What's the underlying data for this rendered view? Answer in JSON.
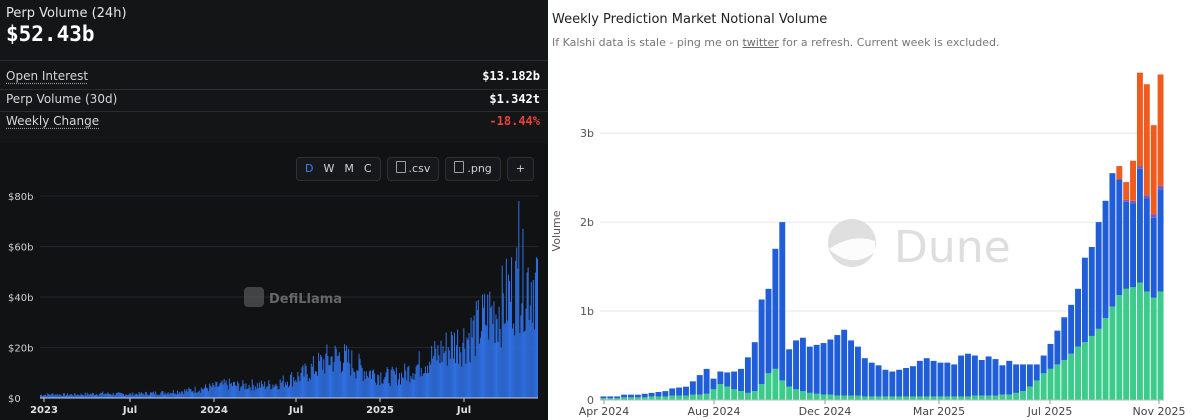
{
  "left_panel": {
    "perp_volume_24h_label": "Perp Volume (24h)",
    "perp_volume_24h_value": "$52.43b",
    "stats": [
      {
        "label": "Open Interest",
        "value": "$13.182b",
        "dotted": true,
        "negative": false
      },
      {
        "label": "Perp Volume (30d)",
        "value": "$1.342t",
        "dotted": false,
        "negative": false
      },
      {
        "label": "Weekly Change",
        "value": "-18.44%",
        "dotted": true,
        "negative": true
      }
    ],
    "toolbar": {
      "periods": [
        "D",
        "W",
        "M",
        "C"
      ],
      "active_period": "D",
      "csv_label": ".csv",
      "png_label": ".png",
      "expand_label": "+"
    },
    "watermark": "DefiLlama"
  },
  "right_panel": {
    "title": "Weekly Prediction Market Notional Volume",
    "subtitle_before": "If Kalshi data is stale - ping me on ",
    "subtitle_link": "twitter",
    "subtitle_after": " for a refresh. Current week is excluded.",
    "watermark": "Dune"
  },
  "colors": {
    "left_bg": "#111214",
    "left_bar": "#2f6fe0",
    "negative": "#e8413c",
    "accent_blue": "#3f7ef7",
    "series_green": "#3ccb8a",
    "series_blue": "#1f5ed8",
    "series_orange": "#ef5b1f",
    "series_purple": "#7e57c2"
  },
  "chart_data": [
    {
      "type": "area",
      "title": "",
      "xlabel": "",
      "ylabel": "",
      "x_tick_labels": [
        "2023",
        "Jul",
        "2024",
        "Jul",
        "2025",
        "Jul"
      ],
      "y_tick_labels": [
        "$0",
        "$20b",
        "$40b",
        "$60b",
        "$80b"
      ],
      "ylim": [
        0,
        80
      ],
      "unit": "billions USD",
      "x_start": "2023-01",
      "interval": "monthly approx. daily average",
      "series": [
        {
          "values": [
            1.2,
            1.5,
            1.3,
            1.4,
            1.6,
            1.8,
            1.6,
            1.5,
            1.7,
            1.9,
            2.2,
            2.6,
            3.0,
            3.8,
            4.5,
            5.5,
            4.8,
            5.2,
            5.0,
            5.6,
            7.5,
            9.0,
            12.0,
            15.0,
            16.5,
            14.0,
            11.0,
            9.5,
            8.5,
            9.0,
            12.0,
            15.0,
            17.5,
            21.0,
            23.0,
            27.0,
            33.0,
            36.0,
            44.0,
            47.0
          ]
        }
      ],
      "peak_value": 78
    },
    {
      "type": "bar",
      "title": "Weekly Prediction Market Notional Volume",
      "xlabel": "",
      "ylabel": "Volume",
      "x_tick_labels": [
        "Apr 2024",
        "Aug 2024",
        "Dec 2024",
        "Mar 2025",
        "Jul 2025",
        "Nov 2025"
      ],
      "y_tick_labels": [
        "0",
        "1b",
        "2b",
        "3b"
      ],
      "ylim": [
        0,
        3.8
      ],
      "unit": "billions USD",
      "categories_start": "2024-04-01",
      "interval": "weekly",
      "series": [
        {
          "values": [
            0.02,
            0.02,
            0.02,
            0.03,
            0.03,
            0.03,
            0.03,
            0.04,
            0.04,
            0.04,
            0.05,
            0.05,
            0.05,
            0.06,
            0.06,
            0.07,
            0.12,
            0.18,
            0.15,
            0.12,
            0.1,
            0.08,
            0.1,
            0.18,
            0.3,
            0.35,
            0.22,
            0.15,
            0.12,
            0.1,
            0.08,
            0.07,
            0.06,
            0.06,
            0.05,
            0.05,
            0.05,
            0.05,
            0.04,
            0.04,
            0.04,
            0.04,
            0.04,
            0.04,
            0.04,
            0.04,
            0.04,
            0.04,
            0.04,
            0.04,
            0.04,
            0.04,
            0.04,
            0.04,
            0.05,
            0.05,
            0.05,
            0.05,
            0.06,
            0.06,
            0.08,
            0.1,
            0.15,
            0.22,
            0.3,
            0.35,
            0.4,
            0.45,
            0.52,
            0.6,
            0.65,
            0.72,
            0.8,
            0.92,
            1.05,
            1.18,
            1.25,
            1.27,
            1.32,
            1.22,
            1.15,
            1.22
          ]
        },
        {
          "values": [
            0.02,
            0.02,
            0.02,
            0.03,
            0.03,
            0.03,
            0.04,
            0.04,
            0.05,
            0.06,
            0.08,
            0.09,
            0.1,
            0.15,
            0.22,
            0.28,
            0.12,
            0.14,
            0.16,
            0.2,
            0.25,
            0.4,
            0.55,
            0.95,
            0.95,
            1.35,
            1.78,
            0.42,
            0.55,
            0.6,
            0.52,
            0.55,
            0.58,
            0.62,
            0.68,
            0.74,
            0.62,
            0.55,
            0.43,
            0.38,
            0.35,
            0.3,
            0.28,
            0.3,
            0.32,
            0.34,
            0.4,
            0.43,
            0.4,
            0.38,
            0.38,
            0.36,
            0.46,
            0.48,
            0.45,
            0.4,
            0.44,
            0.41,
            0.33,
            0.38,
            0.32,
            0.3,
            0.25,
            0.18,
            0.2,
            0.28,
            0.38,
            0.48,
            0.55,
            0.65,
            0.95,
            1.0,
            1.2,
            1.32,
            1.5,
            1.3,
            0.98,
            0.94,
            1.28,
            1.05,
            0.9,
            1.15
          ]
        },
        {
          "values": [
            0,
            0,
            0,
            0,
            0,
            0,
            0,
            0,
            0,
            0,
            0,
            0,
            0,
            0,
            0,
            0,
            0,
            0,
            0,
            0,
            0,
            0,
            0,
            0,
            0,
            0,
            0,
            0,
            0,
            0,
            0,
            0,
            0,
            0,
            0,
            0,
            0,
            0,
            0,
            0,
            0,
            0,
            0,
            0,
            0,
            0,
            0,
            0,
            0,
            0,
            0,
            0,
            0,
            0,
            0,
            0,
            0,
            0,
            0,
            0,
            0,
            0,
            0,
            0,
            0,
            0,
            0,
            0,
            0,
            0,
            0,
            0,
            0,
            0,
            0,
            0,
            0.02,
            0.03,
            0.03,
            0.03,
            0.04,
            0.04
          ]
        },
        {
          "values": [
            0,
            0,
            0,
            0,
            0,
            0,
            0,
            0,
            0,
            0,
            0,
            0,
            0,
            0,
            0,
            0,
            0,
            0,
            0,
            0,
            0,
            0,
            0,
            0,
            0,
            0,
            0,
            0,
            0,
            0,
            0,
            0,
            0,
            0,
            0,
            0,
            0,
            0,
            0,
            0,
            0,
            0,
            0,
            0,
            0,
            0,
            0,
            0,
            0,
            0,
            0,
            0,
            0,
            0,
            0,
            0,
            0,
            0,
            0,
            0,
            0,
            0,
            0,
            0,
            0,
            0,
            0,
            0,
            0,
            0,
            0,
            0,
            0,
            0,
            0,
            0.15,
            0.2,
            0.45,
            1.05,
            1.25,
            1.0,
            1.25
          ]
        }
      ]
    }
  ]
}
